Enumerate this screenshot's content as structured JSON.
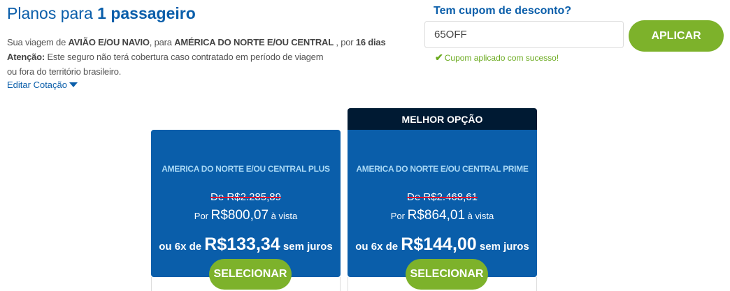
{
  "header": {
    "title_prefix": "Planos para ",
    "title_bold": "1 passageiro"
  },
  "trip": {
    "l1a": "Sua viagem de ",
    "mode": "AVIÃO E/OU NAVIO",
    "l1b": ", para ",
    "dest": "AMÉRICA DO NORTE E/OU CENTRAL",
    "l1c": " , por ",
    "days": "16 dias",
    "warn_label": "Atenção:",
    "warn_text": " Este seguro não terá cobertura caso contratado em período de viagem",
    "warn_text2": "ou fora do território brasileiro."
  },
  "edit_label": "Editar Cotação",
  "coupon": {
    "label": "Tem cupom de desconto?",
    "value": "65OFF",
    "button": "APLICAR",
    "success": "Cupom aplicado com sucesso!"
  },
  "colors": {
    "brand_blue": "#0a5eaa",
    "green": "#7db22b",
    "dark": "#001a33"
  },
  "plans": [
    {
      "name": "AMERICA DO NORTE E/OU CENTRAL PLUS",
      "old": "De R$2.285,89",
      "por": "Por ",
      "price": "R$800,07",
      "vista": " à vista",
      "inst_pre": "ou 6x de ",
      "inst": "R$133,34",
      "inst_post": " sem juros",
      "button": "SELECIONAR"
    },
    {
      "badge": "MELHOR OPÇÃO",
      "name": "AMERICA DO NORTE E/OU CENTRAL PRIME",
      "old": "De R$2.468,61",
      "por": "Por ",
      "price": "R$864,01",
      "vista": " à vista",
      "inst_pre": "ou 6x de ",
      "inst": "R$144,00",
      "inst_post": " sem juros",
      "button": "SELECIONAR"
    }
  ]
}
